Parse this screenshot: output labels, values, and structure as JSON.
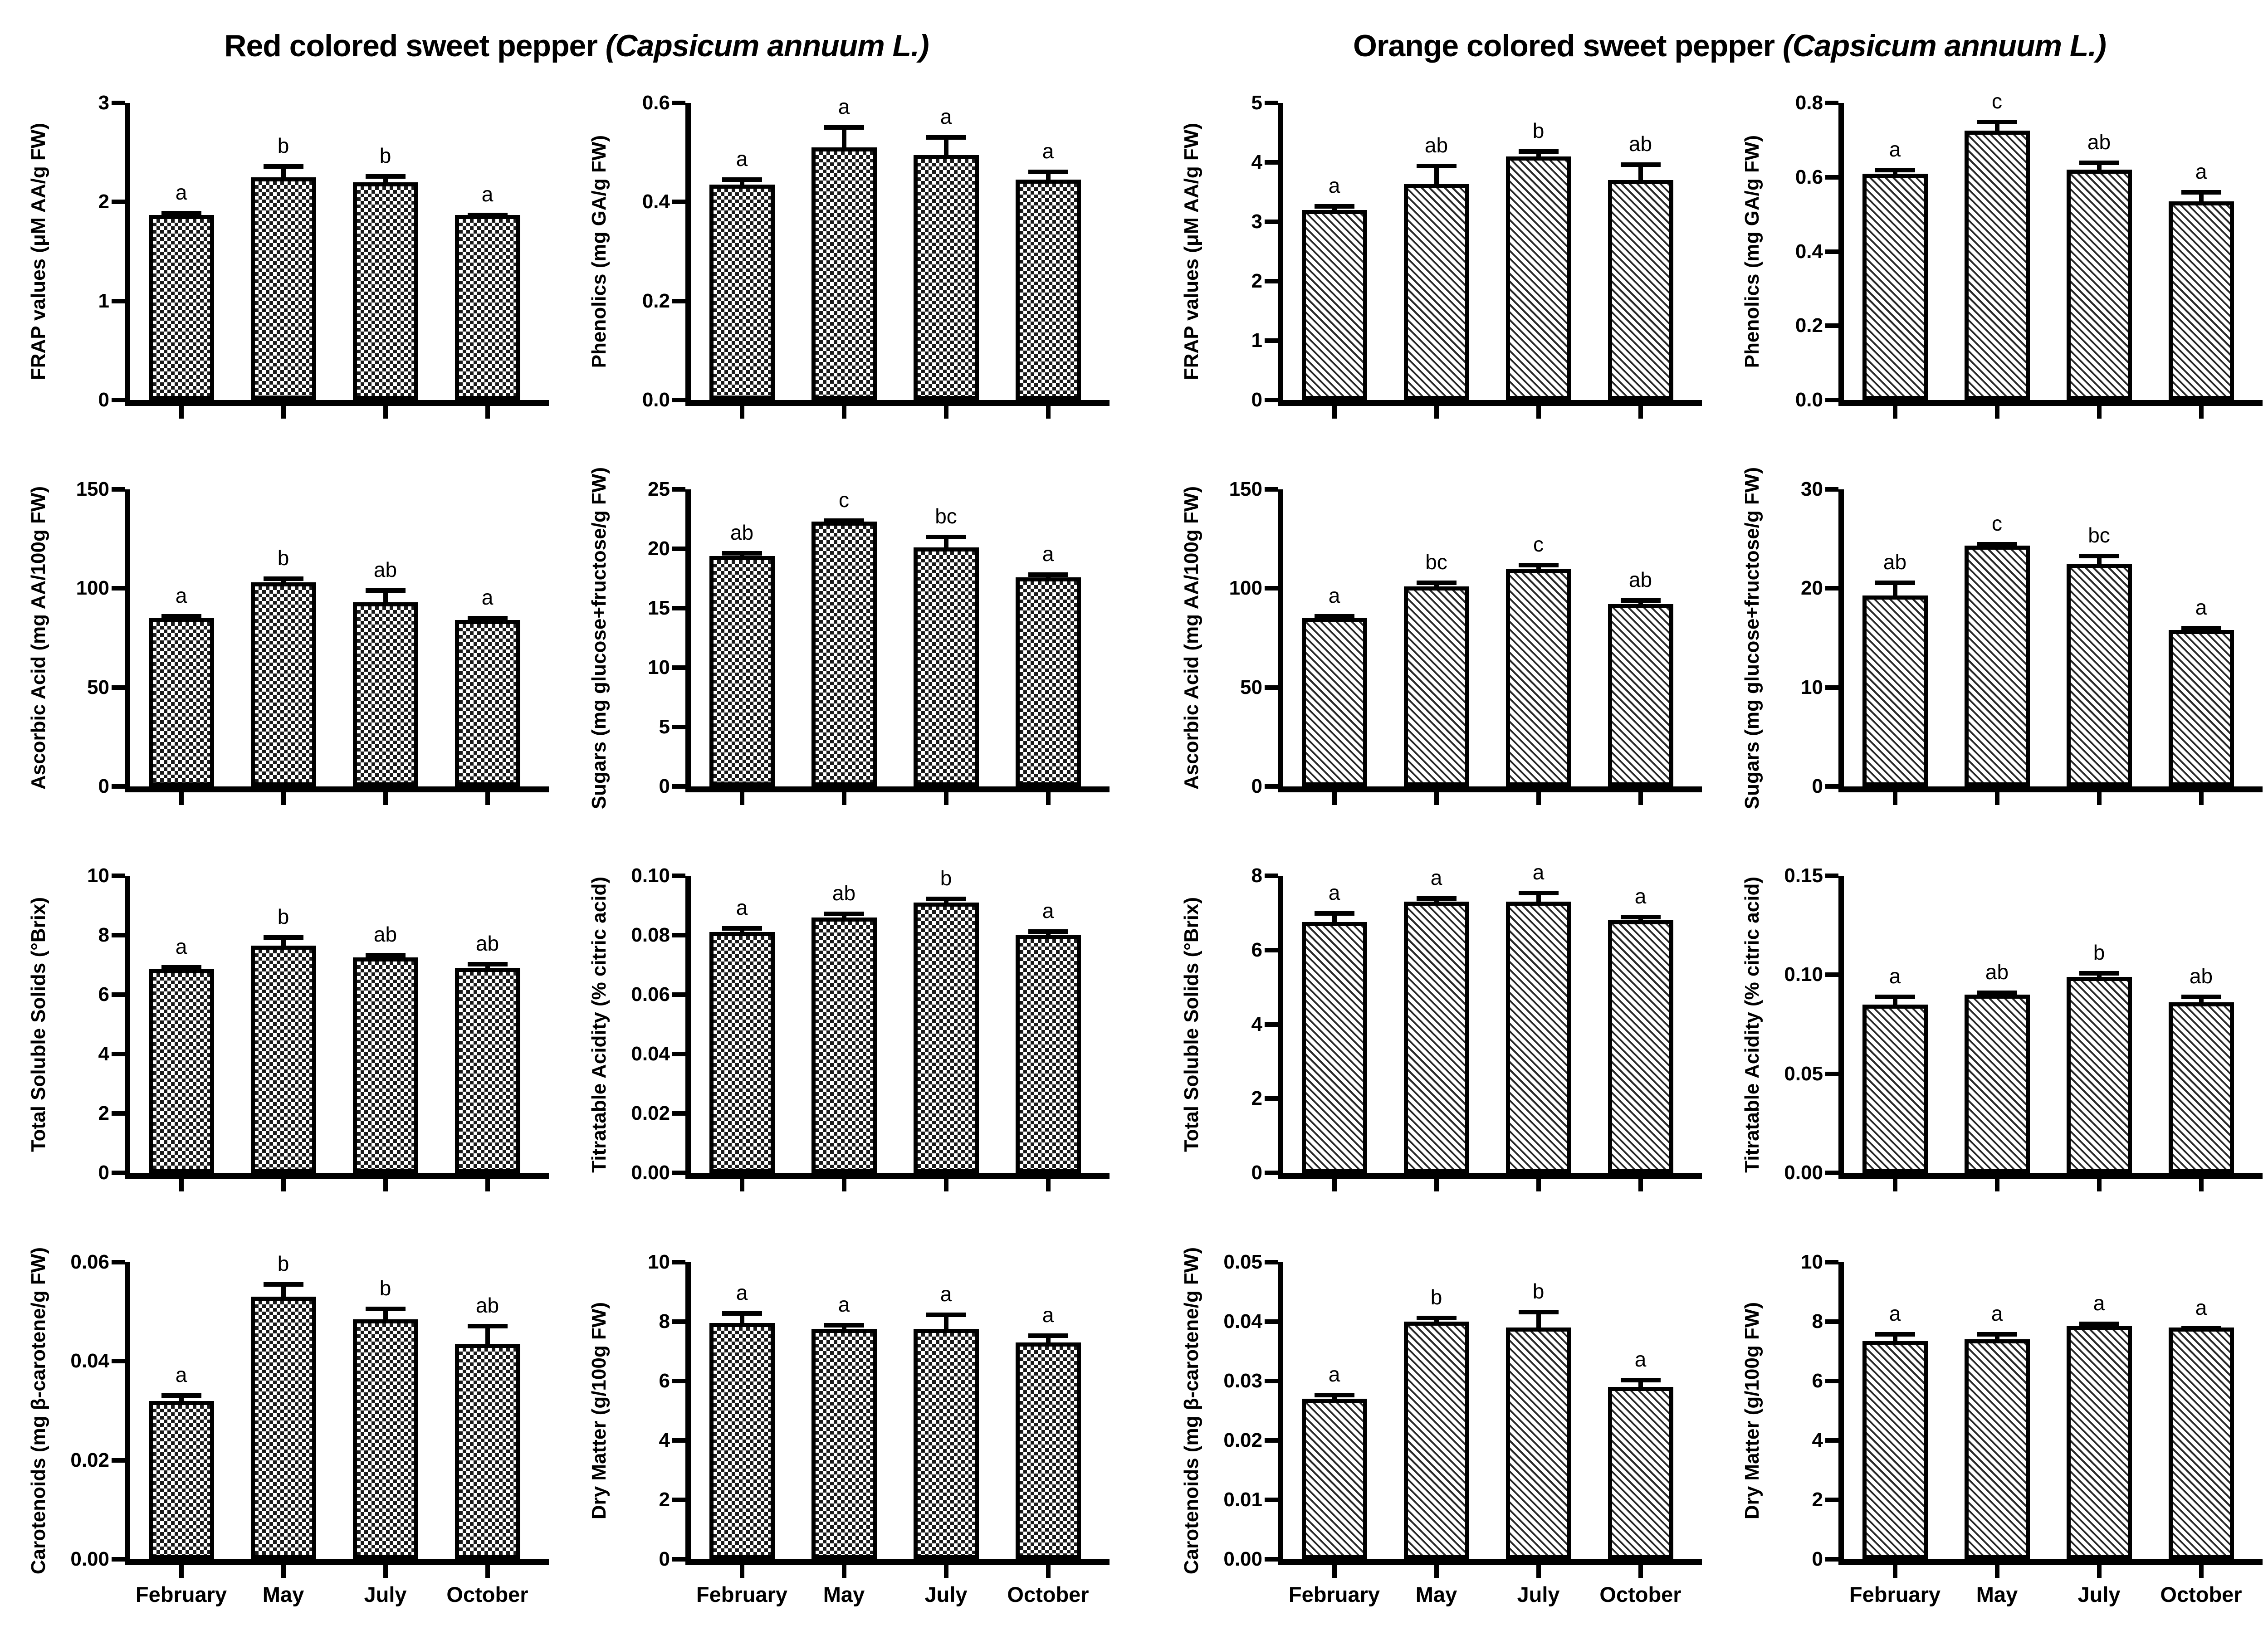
{
  "titles": {
    "red_main": "Red colored sweet pepper",
    "red_species": "(Capsicum  annuum L.)",
    "orange_main": "Orange colored sweet pepper",
    "orange_species": "(Capsicum  annuum L.)"
  },
  "categories": [
    "February",
    "May",
    "July",
    "October"
  ],
  "colors": {
    "ink": "#000000",
    "background": "#ffffff"
  },
  "chart_data": [
    {
      "id": "r-frap",
      "type": "bar",
      "group": "red",
      "pattern": "checker",
      "ylabel": "FRAP values (μM AA/g FW)",
      "ylim": [
        0,
        3
      ],
      "ticks": [
        "0",
        "1",
        "2",
        "3"
      ],
      "grid": false,
      "legend": "none",
      "values": [
        1.87,
        2.25,
        2.2,
        1.87
      ],
      "errors": [
        0.04,
        0.13,
        0.08,
        0.02
      ],
      "letters": [
        "a",
        "b",
        "b",
        "a"
      ],
      "xlabels": false
    },
    {
      "id": "r-phenolics",
      "type": "bar",
      "group": "red",
      "pattern": "checker",
      "ylabel": "Phenolics (mg GA/g FW)",
      "ylim": [
        0,
        0.6
      ],
      "ticks": [
        "0.0",
        "0.2",
        "0.4",
        "0.6"
      ],
      "grid": false,
      "legend": "none",
      "values": [
        0.435,
        0.51,
        0.495,
        0.445
      ],
      "errors": [
        0.015,
        0.045,
        0.04,
        0.02
      ],
      "letters": [
        "a",
        "a",
        "a",
        "a"
      ],
      "xlabels": false
    },
    {
      "id": "r-ascorbic",
      "type": "bar",
      "group": "red",
      "pattern": "checker",
      "ylabel": "Ascorbic Acid (mg AA/100g FW)",
      "ylim": [
        0,
        150
      ],
      "ticks": [
        "0",
        "50",
        "100",
        "150"
      ],
      "grid": false,
      "legend": "none",
      "values": [
        85,
        103,
        93,
        84
      ],
      "errors": [
        2,
        3,
        7,
        2
      ],
      "letters": [
        "a",
        "b",
        "ab",
        "a"
      ],
      "xlabels": false
    },
    {
      "id": "r-sugars",
      "type": "bar",
      "group": "red",
      "pattern": "checker",
      "ylabel": "Sugars (mg glucose+fructose/g FW)",
      "ylim": [
        0,
        25
      ],
      "ticks": [
        "0",
        "5",
        "10",
        "15",
        "20",
        "25"
      ],
      "grid": false,
      "legend": "none",
      "values": [
        19.4,
        22.3,
        20.1,
        17.6
      ],
      "errors": [
        0.4,
        0.25,
        1.1,
        0.4
      ],
      "letters": [
        "ab",
        "c",
        "bc",
        "a"
      ],
      "xlabels": false
    },
    {
      "id": "r-tss",
      "type": "bar",
      "group": "red",
      "pattern": "checker",
      "ylabel": "Total Soluble Solids (°Brix)",
      "ylim": [
        0,
        10
      ],
      "ticks": [
        "0",
        "2",
        "4",
        "6",
        "8",
        "10"
      ],
      "grid": false,
      "legend": "none",
      "values": [
        6.85,
        7.65,
        7.25,
        6.9
      ],
      "errors": [
        0.15,
        0.35,
        0.15,
        0.2
      ],
      "letters": [
        "a",
        "b",
        "ab",
        "ab"
      ],
      "xlabels": false
    },
    {
      "id": "r-ta",
      "type": "bar",
      "group": "red",
      "pattern": "checker",
      "ylabel": "Titratable Acidity (% citric acid)",
      "ylim": [
        0,
        0.1
      ],
      "ticks": [
        "0.00",
        "0.02",
        "0.04",
        "0.06",
        "0.08",
        "0.10"
      ],
      "grid": false,
      "legend": "none",
      "values": [
        0.081,
        0.086,
        0.091,
        0.08
      ],
      "errors": [
        0.002,
        0.002,
        0.002,
        0.002
      ],
      "letters": [
        "a",
        "ab",
        "b",
        "a"
      ],
      "xlabels": false
    },
    {
      "id": "r-carotenoids",
      "type": "bar",
      "group": "red",
      "pattern": "checker",
      "ylabel": "Carotenoids (mg β-carotene/g FW)",
      "ylim": [
        0,
        0.06
      ],
      "ticks": [
        "0.00",
        "0.02",
        "0.04",
        "0.06"
      ],
      "grid": false,
      "legend": "none",
      "values": [
        0.032,
        0.053,
        0.0485,
        0.0435
      ],
      "errors": [
        0.0015,
        0.003,
        0.0025,
        0.004
      ],
      "letters": [
        "a",
        "b",
        "b",
        "ab"
      ],
      "xlabels": true
    },
    {
      "id": "r-dm",
      "type": "bar",
      "group": "red",
      "pattern": "checker",
      "ylabel": "Dry Matter (g/100g FW)",
      "ylim": [
        0,
        10
      ],
      "ticks": [
        "0",
        "2",
        "4",
        "6",
        "8",
        "10"
      ],
      "grid": false,
      "legend": "none",
      "values": [
        7.95,
        7.75,
        7.75,
        7.3
      ],
      "errors": [
        0.4,
        0.2,
        0.55,
        0.3
      ],
      "letters": [
        "a",
        "a",
        "a",
        "a"
      ],
      "xlabels": true
    },
    {
      "id": "o-frap",
      "type": "bar",
      "group": "orange",
      "pattern": "diagonal",
      "ylabel": "FRAP values (μM AA/g FW)",
      "ylim": [
        0,
        5
      ],
      "ticks": [
        "0",
        "1",
        "2",
        "3",
        "4",
        "5"
      ],
      "grid": false,
      "legend": "none",
      "values": [
        3.2,
        3.63,
        4.1,
        3.7
      ],
      "errors": [
        0.1,
        0.35,
        0.12,
        0.3
      ],
      "letters": [
        "a",
        "ab",
        "b",
        "ab"
      ],
      "xlabels": false
    },
    {
      "id": "o-phenolics",
      "type": "bar",
      "group": "orange",
      "pattern": "diagonal",
      "ylabel": "Phenolics (mg GA/g FW)",
      "ylim": [
        0,
        0.8
      ],
      "ticks": [
        "0.0",
        "0.2",
        "0.4",
        "0.6",
        "0.8"
      ],
      "grid": false,
      "legend": "none",
      "values": [
        0.61,
        0.725,
        0.62,
        0.535
      ],
      "errors": [
        0.015,
        0.03,
        0.025,
        0.03
      ],
      "letters": [
        "a",
        "c",
        "ab",
        "a"
      ],
      "xlabels": false
    },
    {
      "id": "o-ascorbic",
      "type": "bar",
      "group": "orange",
      "pattern": "diagonal",
      "ylabel": "Ascorbic Acid (mg AA/100g FW)",
      "ylim": [
        0,
        150
      ],
      "ticks": [
        "0",
        "50",
        "100",
        "150"
      ],
      "grid": false,
      "legend": "none",
      "values": [
        85,
        101,
        110,
        92
      ],
      "errors": [
        2,
        3,
        3,
        3
      ],
      "letters": [
        "a",
        "bc",
        "c",
        "ab"
      ],
      "xlabels": false
    },
    {
      "id": "o-sugars",
      "type": "bar",
      "group": "orange",
      "pattern": "diagonal",
      "ylabel": "Sugars (mg glucose+fructose/g FW)",
      "ylim": [
        0,
        30
      ],
      "ticks": [
        "0",
        "10",
        "20",
        "30"
      ],
      "grid": false,
      "legend": "none",
      "values": [
        19.3,
        24.3,
        22.5,
        15.8
      ],
      "errors": [
        1.5,
        0.4,
        1.0,
        0.4
      ],
      "letters": [
        "ab",
        "c",
        "bc",
        "a"
      ],
      "xlabels": false
    },
    {
      "id": "o-tss",
      "type": "bar",
      "group": "orange",
      "pattern": "diagonal",
      "ylabel": "Total Soluble Solids (°Brix)",
      "ylim": [
        0,
        8
      ],
      "ticks": [
        "0",
        "2",
        "4",
        "6",
        "8"
      ],
      "grid": false,
      "legend": "none",
      "values": [
        6.75,
        7.3,
        7.3,
        6.8
      ],
      "errors": [
        0.3,
        0.15,
        0.3,
        0.15
      ],
      "letters": [
        "a",
        "a",
        "a",
        "a"
      ],
      "xlabels": false
    },
    {
      "id": "o-ta",
      "type": "bar",
      "group": "orange",
      "pattern": "diagonal",
      "ylabel": "Titratable Acidity (% citric acid)",
      "ylim": [
        0,
        0.15
      ],
      "ticks": [
        "0.00",
        "0.05",
        "0.10",
        "0.15"
      ],
      "grid": false,
      "legend": "none",
      "values": [
        0.085,
        0.09,
        0.099,
        0.086
      ],
      "errors": [
        0.005,
        0.002,
        0.003,
        0.004
      ],
      "letters": [
        "a",
        "ab",
        "b",
        "ab"
      ],
      "xlabels": false
    },
    {
      "id": "o-carotenoids",
      "type": "bar",
      "group": "orange",
      "pattern": "diagonal",
      "ylabel": "Carotenoids (mg β-carotene/g FW)",
      "ylim": [
        0,
        0.05
      ],
      "ticks": [
        "0.00",
        "0.01",
        "0.02",
        "0.03",
        "0.04",
        "0.05"
      ],
      "grid": false,
      "legend": "none",
      "values": [
        0.027,
        0.04,
        0.039,
        0.029
      ],
      "errors": [
        0.001,
        0.001,
        0.003,
        0.0015
      ],
      "letters": [
        "a",
        "b",
        "b",
        "a"
      ],
      "xlabels": true
    },
    {
      "id": "o-dm",
      "type": "bar",
      "group": "orange",
      "pattern": "diagonal",
      "ylabel": "Dry Matter (g/100g FW)",
      "ylim": [
        0,
        10
      ],
      "ticks": [
        "0",
        "2",
        "4",
        "6",
        "8",
        "10"
      ],
      "grid": false,
      "legend": "none",
      "values": [
        7.35,
        7.4,
        7.85,
        7.8
      ],
      "errors": [
        0.3,
        0.25,
        0.15,
        0.05
      ],
      "letters": [
        "a",
        "a",
        "a",
        "a"
      ],
      "xlabels": true
    }
  ]
}
